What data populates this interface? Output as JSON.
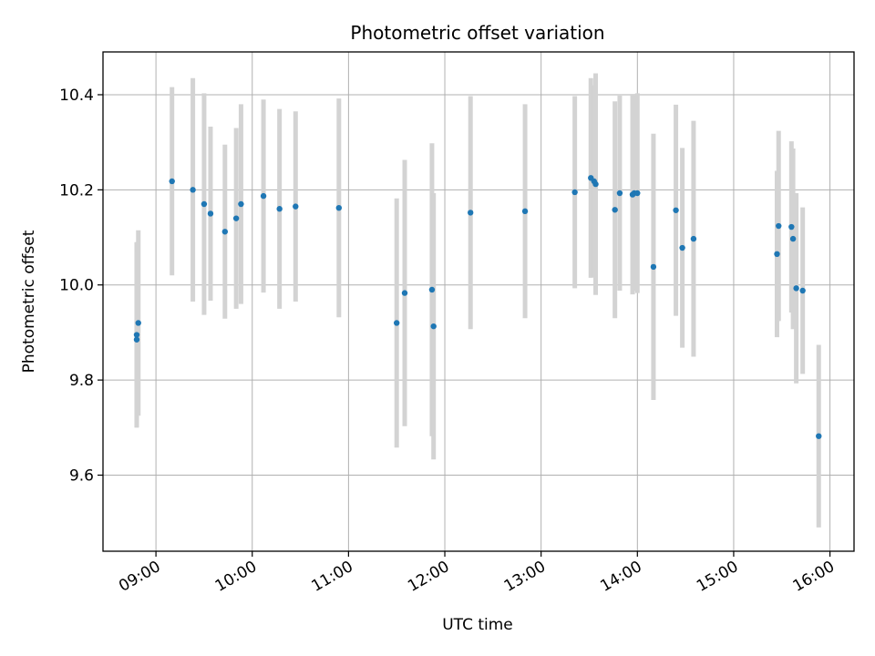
{
  "chart_data": {
    "type": "scatter",
    "title": "Photometric offset variation",
    "xlabel": "UTC time",
    "ylabel": "Photometric offset",
    "x_ticks": [
      "09:00",
      "10:00",
      "11:00",
      "12:00",
      "13:00",
      "14:00",
      "15:00",
      "16:00"
    ],
    "y_ticks": [
      "9.6",
      "9.8",
      "10.0",
      "10.2",
      "10.4"
    ],
    "xlim": [
      "08:27",
      "16:15"
    ],
    "ylim": [
      9.44,
      10.49
    ],
    "grid": true,
    "colors": {
      "point": "#1f77b4",
      "errorbar": "#d3d3d3",
      "grid": "#b0b0b0",
      "axes": "#000000"
    },
    "points": [
      {
        "t": "08:48",
        "y": 9.885,
        "err": 0.185
      },
      {
        "t": "08:48",
        "y": 9.895,
        "err": 0.195
      },
      {
        "t": "08:49",
        "y": 9.92,
        "err": 0.195
      },
      {
        "t": "09:10",
        "y": 10.218,
        "err": 0.198
      },
      {
        "t": "09:23",
        "y": 10.2,
        "err": 0.235
      },
      {
        "t": "09:30",
        "y": 10.17,
        "err": 0.233
      },
      {
        "t": "09:34",
        "y": 10.15,
        "err": 0.183
      },
      {
        "t": "09:43",
        "y": 10.112,
        "err": 0.183
      },
      {
        "t": "09:50",
        "y": 10.14,
        "err": 0.19
      },
      {
        "t": "09:53",
        "y": 10.17,
        "err": 0.21
      },
      {
        "t": "10:07",
        "y": 10.187,
        "err": 0.203
      },
      {
        "t": "10:17",
        "y": 10.16,
        "err": 0.21
      },
      {
        "t": "10:27",
        "y": 10.165,
        "err": 0.2
      },
      {
        "t": "10:54",
        "y": 10.162,
        "err": 0.23
      },
      {
        "t": "11:30",
        "y": 9.92,
        "err": 0.262
      },
      {
        "t": "11:35",
        "y": 9.983,
        "err": 0.28
      },
      {
        "t": "11:52",
        "y": 9.99,
        "err": 0.308
      },
      {
        "t": "11:53",
        "y": 9.913,
        "err": 0.28
      },
      {
        "t": "12:16",
        "y": 10.152,
        "err": 0.245
      },
      {
        "t": "12:50",
        "y": 10.155,
        "err": 0.225
      },
      {
        "t": "13:21",
        "y": 10.195,
        "err": 0.202
      },
      {
        "t": "13:31",
        "y": 10.225,
        "err": 0.21
      },
      {
        "t": "13:33",
        "y": 10.218,
        "err": 0.202
      },
      {
        "t": "13:34",
        "y": 10.212,
        "err": 0.233
      },
      {
        "t": "13:46",
        "y": 10.158,
        "err": 0.228
      },
      {
        "t": "13:49",
        "y": 10.193,
        "err": 0.205
      },
      {
        "t": "13:57",
        "y": 10.19,
        "err": 0.21
      },
      {
        "t": "13:58",
        "y": 10.193,
        "err": 0.205
      },
      {
        "t": "14:00",
        "y": 10.193,
        "err": 0.21
      },
      {
        "t": "14:10",
        "y": 10.038,
        "err": 0.28
      },
      {
        "t": "14:24",
        "y": 10.157,
        "err": 0.222
      },
      {
        "t": "14:28",
        "y": 10.078,
        "err": 0.21
      },
      {
        "t": "14:35",
        "y": 10.097,
        "err": 0.248
      },
      {
        "t": "15:27",
        "y": 10.065,
        "err": 0.175
      },
      {
        "t": "15:28",
        "y": 10.124,
        "err": 0.2
      },
      {
        "t": "15:36",
        "y": 10.122,
        "err": 0.18
      },
      {
        "t": "15:37",
        "y": 10.097,
        "err": 0.19
      },
      {
        "t": "15:39",
        "y": 9.993,
        "err": 0.2
      },
      {
        "t": "15:43",
        "y": 9.988,
        "err": 0.175
      },
      {
        "t": "15:53",
        "y": 9.682,
        "err": 0.192
      }
    ]
  }
}
